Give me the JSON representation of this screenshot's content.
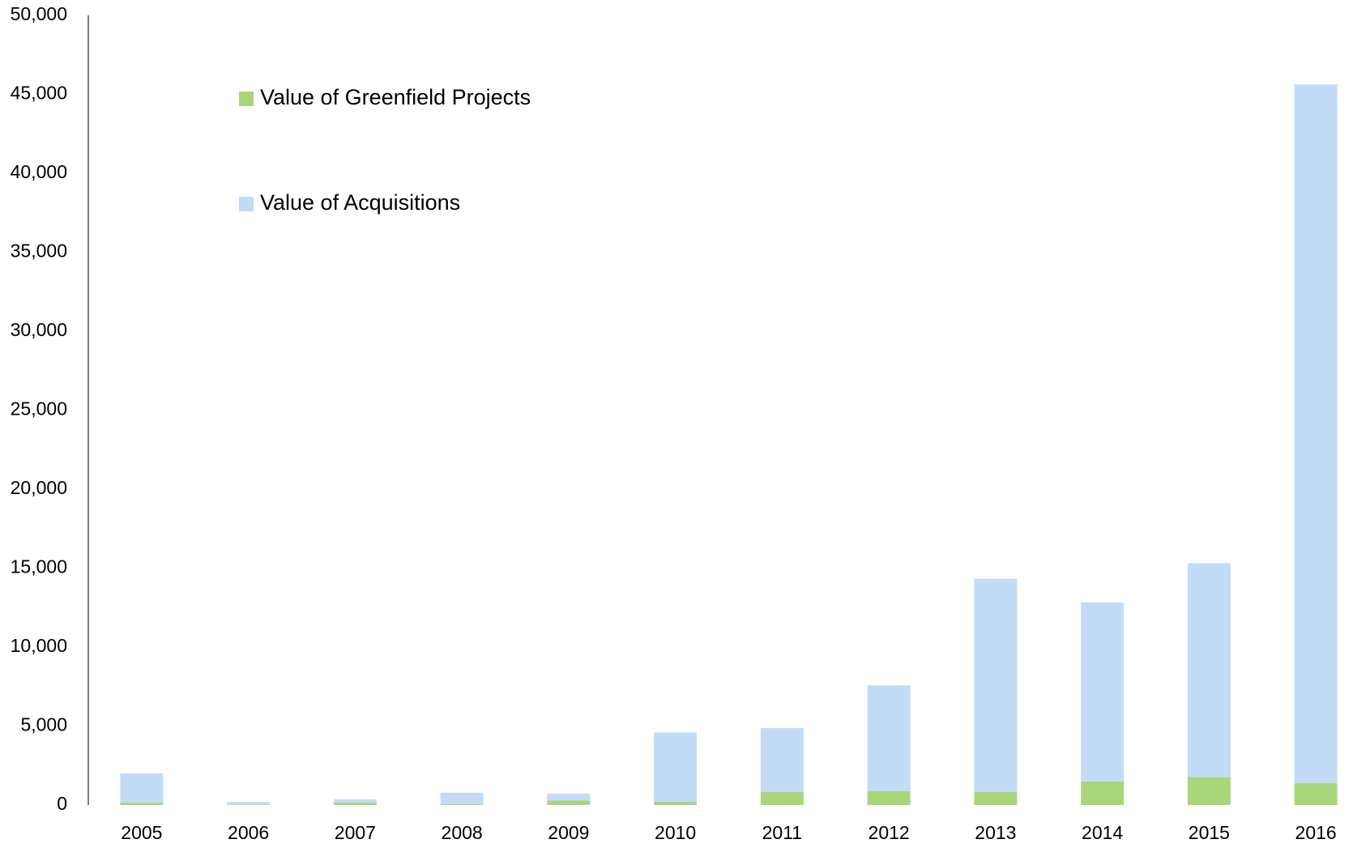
{
  "chart_data": {
    "type": "stacked_bar",
    "categories": [
      "2005",
      "2006",
      "2007",
      "2008",
      "2009",
      "2010",
      "2011",
      "2012",
      "2013",
      "2014",
      "2015",
      "2016"
    ],
    "series": [
      {
        "name": "Value of Greenfield Projects",
        "color": "#a9d67a",
        "values": [
          150,
          30,
          150,
          50,
          280,
          200,
          830,
          880,
          830,
          1490,
          1770,
          1380
        ]
      },
      {
        "name": "Value of Acquisitions",
        "color": "#c2dcf7",
        "values": [
          1850,
          170,
          220,
          730,
          440,
          4390,
          4040,
          6700,
          13500,
          11340,
          13550,
          44250
        ]
      }
    ],
    "ylim": [
      0,
      50000
    ],
    "yticks": [
      0,
      {
        "value": 5000,
        "label": "5,000"
      },
      {
        "value": 10000,
        "label": "10,000"
      },
      {
        "value": 15000,
        "label": "15,000"
      },
      {
        "value": 20000,
        "label": "20,000"
      },
      {
        "value": 25000,
        "label": "25,000"
      },
      {
        "value": 30000,
        "label": "30,000"
      },
      {
        "value": 35000,
        "label": "35,000"
      },
      {
        "value": 40000,
        "label": "40,000"
      },
      {
        "value": 45000,
        "label": "45,000"
      },
      {
        "value": 50000,
        "label": "50,000"
      }
    ],
    "grid": false,
    "legend": "top-left"
  }
}
